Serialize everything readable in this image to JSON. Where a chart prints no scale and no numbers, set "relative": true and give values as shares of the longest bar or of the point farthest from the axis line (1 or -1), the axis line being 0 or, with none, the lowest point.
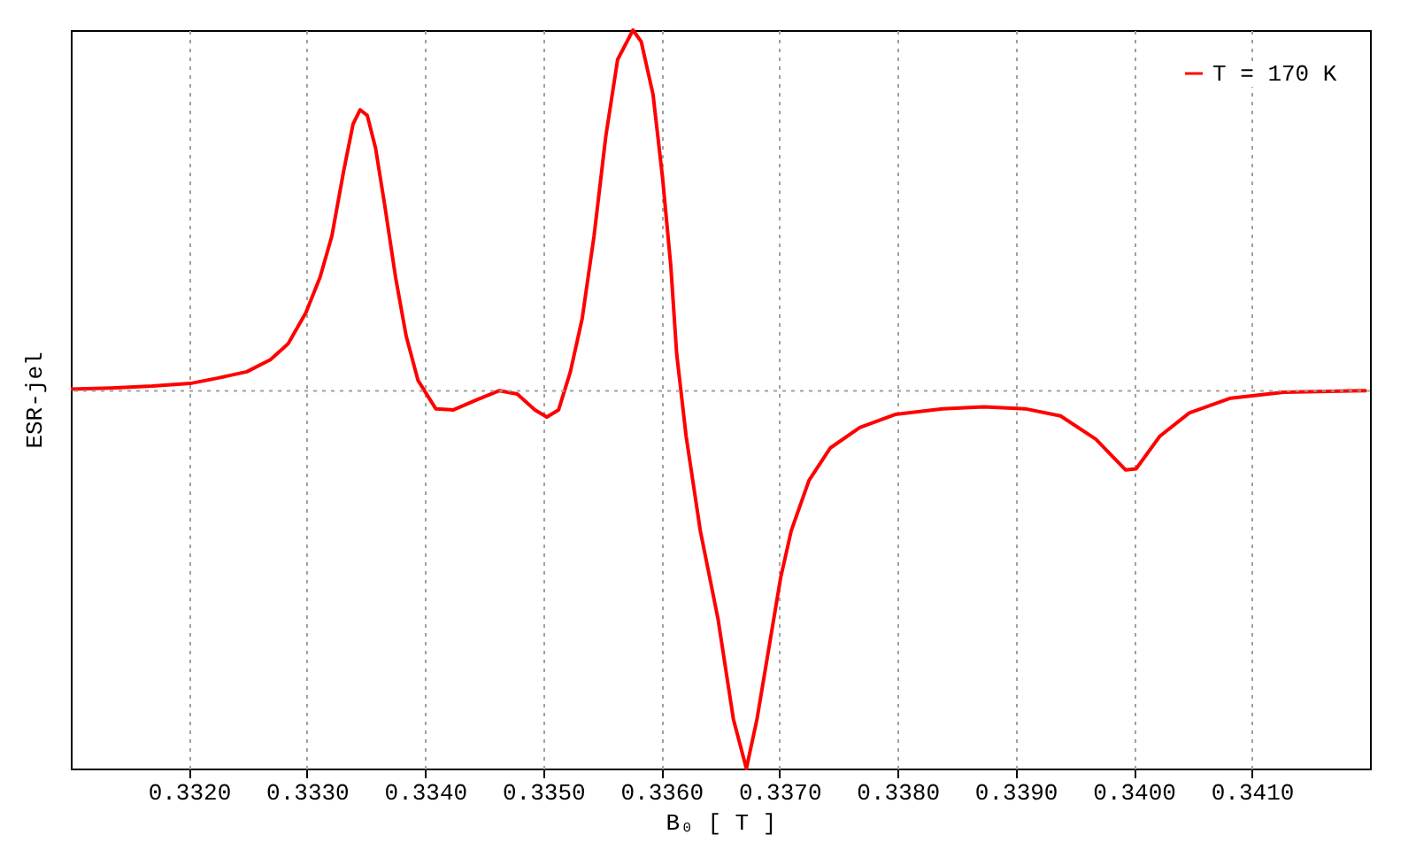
{
  "chart_data": {
    "type": "line",
    "xlabel": "B₀ [ T ]",
    "ylabel": "ESR-jel",
    "relative": true,
    "grid": "x",
    "legend": "top right",
    "xlim": [
      0.331,
      0.342
    ],
    "xticks": [
      {
        "value": 0.332,
        "label": "0.3320"
      },
      {
        "value": 0.333,
        "label": "0.3330"
      },
      {
        "value": 0.334,
        "label": "0.3340"
      },
      {
        "value": 0.335,
        "label": "0.3350"
      },
      {
        "value": 0.336,
        "label": "0.3360"
      },
      {
        "value": 0.337,
        "label": "0.3370"
      },
      {
        "value": 0.338,
        "label": "0.3380"
      },
      {
        "value": 0.339,
        "label": "0.3390"
      },
      {
        "value": 0.34,
        "label": "0.3400"
      },
      {
        "value": 0.341,
        "label": "0.3410"
      }
    ],
    "ref_lines": [
      {
        "axis": "y",
        "value": 0,
        "color": "#a0a0a0",
        "line_style": "dotted"
      }
    ],
    "x": [
      0.331,
      0.33134,
      0.33169,
      0.33201,
      0.33224,
      0.33249,
      0.33269,
      0.33284,
      0.33299,
      0.33311,
      0.33321,
      0.33331,
      0.33339,
      0.33345,
      0.33351,
      0.33358,
      0.33366,
      0.33375,
      0.33384,
      0.33394,
      0.33409,
      0.33424,
      0.33444,
      0.33463,
      0.33478,
      0.33493,
      0.33503,
      0.33513,
      0.33523,
      0.33533,
      0.33543,
      0.33553,
      0.33563,
      0.33576,
      0.33583,
      0.33593,
      0.33601,
      0.33608,
      0.33613,
      0.33621,
      0.33633,
      0.33648,
      0.33661,
      0.33672,
      0.33681,
      0.33691,
      0.33701,
      0.3371,
      0.33725,
      0.33743,
      0.33768,
      0.33798,
      0.33838,
      0.33873,
      0.33908,
      0.33938,
      0.33968,
      0.33993,
      0.34002,
      0.34022,
      0.34047,
      0.34082,
      0.34127,
      0.34197
    ],
    "series": [
      {
        "name": "T = 170 K",
        "color": "#ff0000",
        "values": [
          0.005,
          0.008,
          0.013,
          0.02,
          0.034,
          0.051,
          0.083,
          0.125,
          0.207,
          0.301,
          0.41,
          0.582,
          0.707,
          0.745,
          0.73,
          0.644,
          0.488,
          0.301,
          0.145,
          0.028,
          -0.047,
          -0.05,
          -0.023,
          0.001,
          -0.008,
          -0.05,
          -0.069,
          -0.05,
          0.051,
          0.192,
          0.41,
          0.675,
          0.878,
          0.956,
          0.925,
          0.785,
          0.566,
          0.332,
          0.098,
          -0.12,
          -0.37,
          -0.604,
          -0.869,
          -1,
          -0.869,
          -0.682,
          -0.495,
          -0.37,
          -0.237,
          -0.151,
          -0.097,
          -0.062,
          -0.047,
          -0.042,
          -0.047,
          -0.066,
          -0.128,
          -0.209,
          -0.206,
          -0.12,
          -0.058,
          -0.019,
          -0.003,
          0.001
        ]
      }
    ]
  }
}
